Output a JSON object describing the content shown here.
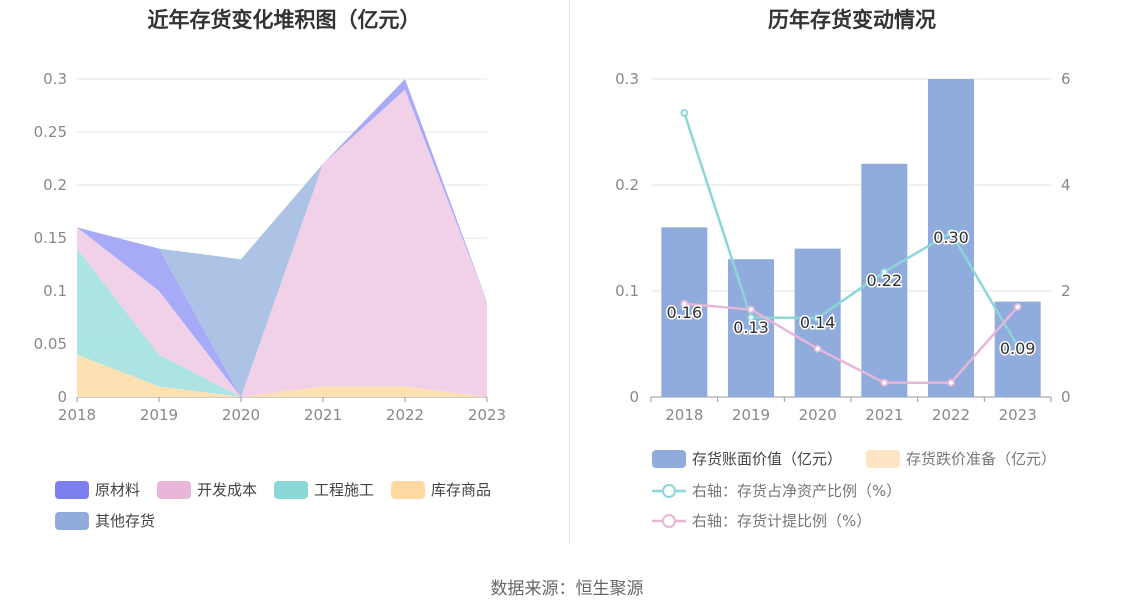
{
  "source_text": "数据来源：恒生聚源",
  "chart_data": [
    {
      "type": "area",
      "stacked": true,
      "title": "近年存货变化堆积图（亿元）",
      "x": [
        "2018",
        "2019",
        "2020",
        "2021",
        "2022",
        "2023"
      ],
      "ylim": [
        0,
        0.3
      ],
      "yticks": [
        "0",
        "0.05",
        "0.1",
        "0.15",
        "0.2",
        "0.25",
        "0.3"
      ],
      "grid": true,
      "legend_position": "bottom",
      "series": [
        {
          "name": "库存商品",
          "color": "#fedfae",
          "values": [
            0.04,
            0.01,
            0.0,
            0.01,
            0.01,
            0.0
          ]
        },
        {
          "name": "工程施工",
          "color": "#a6e3e2",
          "values": [
            0.1,
            0.03,
            0.0,
            0.0,
            0.0,
            0.0
          ]
        },
        {
          "name": "开发成本",
          "color": "#efcfe6",
          "values": [
            0.02,
            0.06,
            0.0,
            0.21,
            0.28,
            0.09
          ]
        },
        {
          "name": "原材料",
          "color": "#a2a5f7",
          "values": [
            0.0,
            0.04,
            0.0,
            0.0,
            0.01,
            0.0
          ]
        },
        {
          "name": "其他存货",
          "color": "#a9c0e4",
          "values": [
            0.0,
            0.0,
            0.13,
            0.0,
            0.0,
            0.0
          ]
        }
      ],
      "legend": [
        {
          "name": "原材料",
          "color": "#7b7ff0"
        },
        {
          "name": "开发成本",
          "color": "#e8b6d9"
        },
        {
          "name": "工程施工",
          "color": "#89d8d6"
        },
        {
          "name": "库存商品",
          "color": "#fdd9a2"
        },
        {
          "name": "其他存货",
          "color": "#8facdc"
        }
      ]
    },
    {
      "type": "bar",
      "title": "历年存货变动情况",
      "categories": [
        "2018",
        "2019",
        "2020",
        "2021",
        "2022",
        "2023"
      ],
      "ylim": [
        0,
        0.3
      ],
      "yticks": [
        "0",
        "0.1",
        "0.2",
        "0.3"
      ],
      "y2lim": [
        0,
        6
      ],
      "y2ticks": [
        "0",
        "2",
        "4",
        "6"
      ],
      "grid": true,
      "legend_position": "bottom",
      "series": [
        {
          "name": "存货账面价值（亿元）",
          "type": "bar",
          "color": "#8facdc",
          "values": [
            0.16,
            0.13,
            0.14,
            0.22,
            0.3,
            0.09
          ],
          "labels": [
            "0.16",
            "0.13",
            "0.14",
            "0.22",
            "0.30",
            "0.09"
          ]
        },
        {
          "name": "存货跌价准备（亿元）",
          "type": "bar",
          "color": "#fde5c6",
          "values": [
            0,
            0,
            0,
            0,
            0,
            0
          ]
        },
        {
          "name": "右轴：存货占净资产比例（%）",
          "type": "line",
          "axis": "right",
          "color": "#8dd6d8",
          "values": [
            5.36,
            1.5,
            1.49,
            2.36,
            3.1,
            0.96
          ]
        },
        {
          "name": "右轴：存货计提比例（%）",
          "type": "line",
          "axis": "right",
          "color": "#e8b6d9",
          "values": [
            1.76,
            1.65,
            0.91,
            0.27,
            0.27,
            1.7
          ]
        }
      ]
    }
  ]
}
